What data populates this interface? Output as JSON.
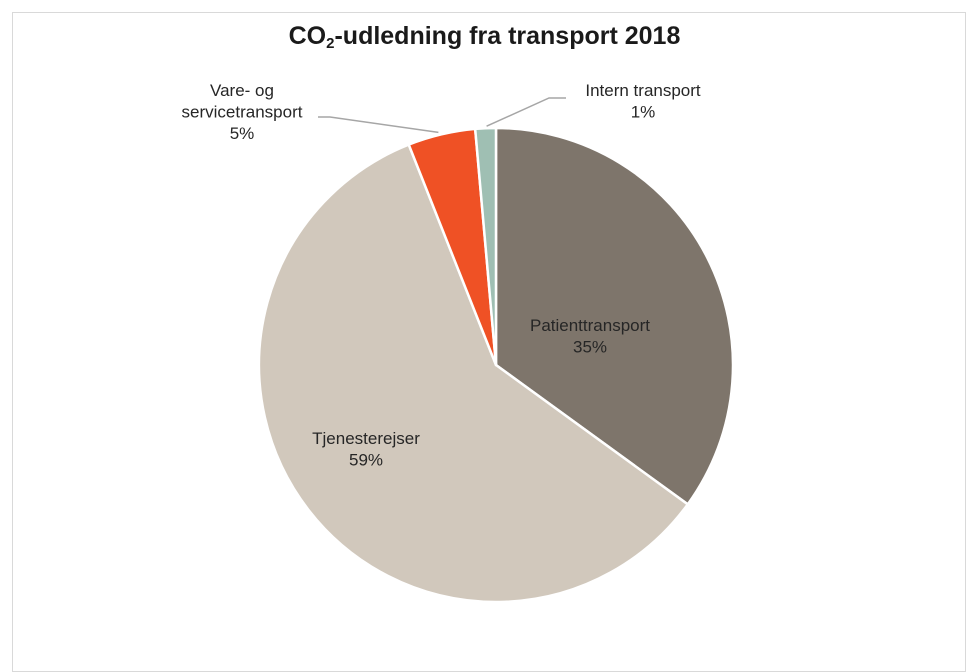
{
  "chart_data": {
    "type": "pie",
    "title": {
      "prefix": "CO",
      "subscript": "2",
      "suffix": "-udledning fra transport 2018"
    },
    "slices": [
      {
        "label_lines": [
          "Patienttransport"
        ],
        "value_text": "35%",
        "value": 35,
        "color": "#7e756b",
        "label_position": "inside"
      },
      {
        "label_lines": [
          "Tjenesterejser"
        ],
        "value_text": "59%",
        "value": 59,
        "color": "#d1c8bc",
        "label_position": "inside"
      },
      {
        "label_lines": [
          "Vare- og",
          "servicetransport"
        ],
        "value_text": "5%",
        "value": 4.6,
        "color": "#ef5125",
        "label_position": "outside-left"
      },
      {
        "label_lines": [
          "Intern transport"
        ],
        "value_text": "1%",
        "value": 1.4,
        "color": "#9fbfb3",
        "label_position": "outside-right"
      }
    ],
    "start_angle": "12 o'clock",
    "direction": "clockwise",
    "legend": "none",
    "slice_border_color": "#ffffff",
    "leader_line_color": "#a6a6a6"
  }
}
